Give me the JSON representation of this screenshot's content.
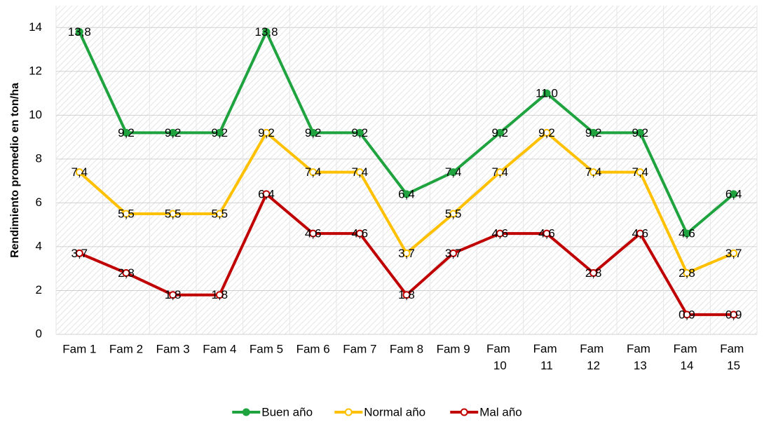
{
  "chart_data": {
    "type": "line",
    "y_label": "Rendimiento promedio en  ton/ha",
    "categories": [
      "Fam 1",
      "Fam 2",
      "Fam 3",
      "Fam 4",
      "Fam 5",
      "Fam 6",
      "Fam 7",
      "Fam 8",
      "Fam 9",
      "Fam 10",
      "Fam 11",
      "Fam 12",
      "Fam 13",
      "Fam 14",
      "Fam 15"
    ],
    "series": [
      {
        "name": "Buen año",
        "color": "#1fa33f",
        "marker_fill": "#1fa33f",
        "values": [
          13.8,
          9.2,
          9.2,
          9.2,
          13.8,
          9.2,
          9.2,
          6.4,
          7.4,
          9.2,
          11.0,
          9.2,
          9.2,
          4.6,
          6.4
        ],
        "value_labels": [
          "13,8",
          "9,2",
          "9,2",
          "9,2",
          "13,8",
          "9,2",
          "9,2",
          "6,4",
          "7,4",
          "9,2",
          "11,0",
          "9,2",
          "9,2",
          "4,6",
          "6,4"
        ]
      },
      {
        "name": "Normal año",
        "color": "#ffc000",
        "marker_fill": "#ffffff",
        "values": [
          7.4,
          5.5,
          5.5,
          5.5,
          9.2,
          7.4,
          7.4,
          3.7,
          5.5,
          7.4,
          9.2,
          7.4,
          7.4,
          2.8,
          3.7
        ],
        "value_labels": [
          "7,4",
          "5,5",
          "5,5",
          "5,5",
          "9,2",
          "7,4",
          "7,4",
          "3,7",
          "5,5",
          "7,4",
          "9,2",
          "7,4",
          "7,4",
          "2,8",
          "3,7"
        ]
      },
      {
        "name": "Mal año",
        "color": "#c00000",
        "marker_fill": "#ffffff",
        "values": [
          3.7,
          2.8,
          1.8,
          1.8,
          6.4,
          4.6,
          4.6,
          1.8,
          3.7,
          4.6,
          4.6,
          2.8,
          4.6,
          0.9,
          0.9
        ],
        "value_labels": [
          "3,7",
          "2,8",
          "1,8",
          "1,8",
          "6,4",
          "4,6",
          "4,6",
          "1,8",
          "3,7",
          "4,6",
          "4,6",
          "2,8",
          "4,6",
          "0,9",
          "0,9"
        ]
      }
    ],
    "ylim": [
      0,
      15
    ],
    "yticks": [
      0,
      2,
      4,
      6,
      8,
      10,
      12,
      14
    ],
    "grid": true,
    "legend": "bottom"
  }
}
